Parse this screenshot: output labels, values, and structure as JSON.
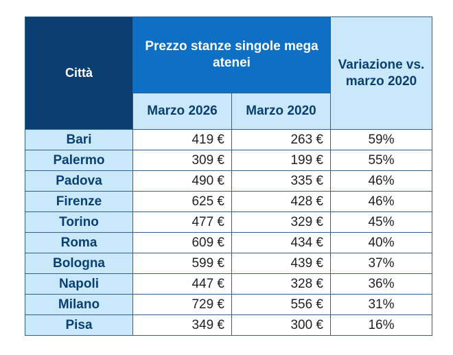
{
  "chart_data": {
    "type": "table",
    "headers": {
      "city": "Città",
      "group": "Prezzo stanze singole mega atenei",
      "variation": "Variazione vs. marzo 2020",
      "col_2026": "Marzo 2026",
      "col_2020": "Marzo 2020"
    },
    "rows": [
      {
        "city": "Bari",
        "mar2026": "419 €",
        "mar2020": "263 €",
        "variation": "59%"
      },
      {
        "city": "Palermo",
        "mar2026": "309 €",
        "mar2020": "199 €",
        "variation": "55%"
      },
      {
        "city": "Padova",
        "mar2026": "490 €",
        "mar2020": "335 €",
        "variation": "46%"
      },
      {
        "city": "Firenze",
        "mar2026": "625 €",
        "mar2020": "428 €",
        "variation": "46%"
      },
      {
        "city": "Torino",
        "mar2026": "477 €",
        "mar2020": "329 €",
        "variation": "45%"
      },
      {
        "city": "Roma",
        "mar2026": "609 €",
        "mar2020": "434 €",
        "variation": "40%"
      },
      {
        "city": "Bologna",
        "mar2026": "599 €",
        "mar2020": "439 €",
        "variation": "37%"
      },
      {
        "city": "Napoli",
        "mar2026": "447 €",
        "mar2020": "328 €",
        "variation": "36%"
      },
      {
        "city": "Milano",
        "mar2026": "729 €",
        "mar2020": "556 €",
        "variation": "31%"
      },
      {
        "city": "Pisa",
        "mar2026": "349 €",
        "mar2020": "300 €",
        "variation": "16%"
      }
    ]
  },
  "colors": {
    "header_dark": "#0b3f72",
    "header_blue": "#0e6fc4",
    "header_light": "#c9e9fb",
    "border": "#2f5f8f"
  }
}
